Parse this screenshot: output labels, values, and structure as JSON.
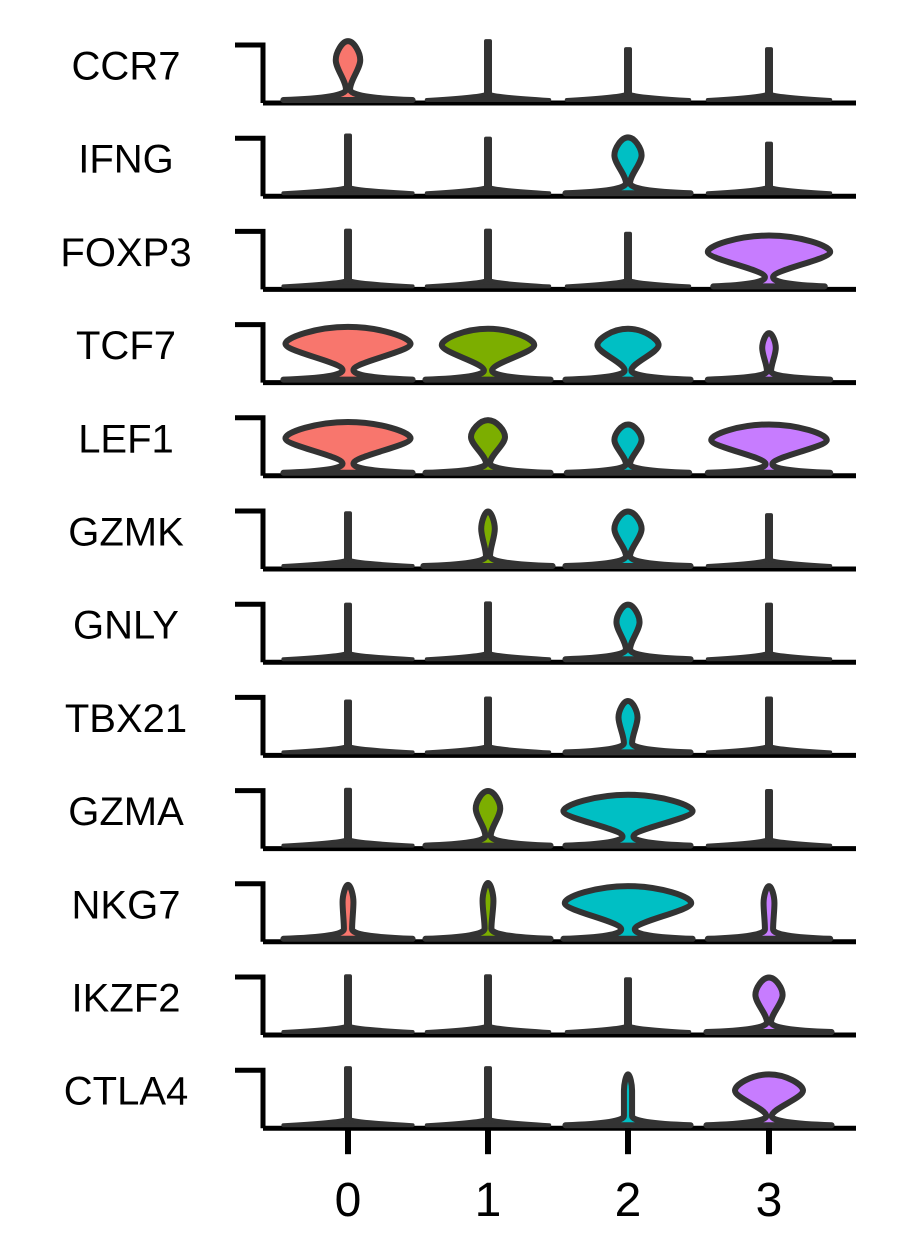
{
  "chart_data": {
    "type": "stacked-violin",
    "categories": [
      "0",
      "1",
      "2",
      "3"
    ],
    "xlabel": "",
    "ylabel": "",
    "colors": {
      "0": "#F8766D",
      "1": "#7CAE00",
      "2": "#00BFC4",
      "3": "#C77CFF"
    },
    "outline_color": "#333333",
    "genes": [
      {
        "name": "CCR7",
        "violins": [
          {
            "max": 0.95,
            "top_w": 0.18,
            "mid_w": 0.03,
            "base_w": 0.95
          },
          {
            "max": 0.95,
            "top_w": 0,
            "mid_w": 0,
            "base_w": 0.9
          },
          {
            "max": 0.82,
            "top_w": 0,
            "mid_w": 0,
            "base_w": 0.9
          },
          {
            "max": 0.82,
            "top_w": 0,
            "mid_w": 0,
            "base_w": 0.9
          }
        ]
      },
      {
        "name": "IFNG",
        "violins": [
          {
            "max": 0.93,
            "top_w": 0,
            "mid_w": 0,
            "base_w": 0.95
          },
          {
            "max": 0.88,
            "top_w": 0,
            "mid_w": 0,
            "base_w": 0.9
          },
          {
            "max": 0.9,
            "top_w": 0.2,
            "mid_w": 0.03,
            "base_w": 0.92
          },
          {
            "max": 0.8,
            "top_w": 0,
            "mid_w": 0,
            "base_w": 0.9
          }
        ]
      },
      {
        "name": "FOXP3",
        "violins": [
          {
            "max": 0.9,
            "top_w": 0,
            "mid_w": 0,
            "base_w": 0.95
          },
          {
            "max": 0.9,
            "top_w": 0,
            "mid_w": 0,
            "base_w": 0.9
          },
          {
            "max": 0.85,
            "top_w": 0,
            "mid_w": 0,
            "base_w": 0.9
          },
          {
            "max": 0.82,
            "top_w": 0.9,
            "mid_w": 0.06,
            "base_w": 0.82
          }
        ]
      },
      {
        "name": "TCF7",
        "violins": [
          {
            "max": 0.85,
            "top_w": 0.92,
            "mid_w": 0.08,
            "base_w": 0.95
          },
          {
            "max": 0.82,
            "top_w": 0.68,
            "mid_w": 0.06,
            "base_w": 0.92
          },
          {
            "max": 0.82,
            "top_w": 0.45,
            "mid_w": 0.05,
            "base_w": 0.92
          },
          {
            "max": 0.75,
            "top_w": 0.1,
            "mid_w": 0.03,
            "base_w": 0.9
          }
        ]
      },
      {
        "name": "LEF1",
        "violins": [
          {
            "max": 0.82,
            "top_w": 0.92,
            "mid_w": 0.08,
            "base_w": 0.95
          },
          {
            "max": 0.85,
            "top_w": 0.25,
            "mid_w": 0.03,
            "base_w": 0.92
          },
          {
            "max": 0.78,
            "top_w": 0.2,
            "mid_w": 0.03,
            "base_w": 0.9
          },
          {
            "max": 0.78,
            "top_w": 0.85,
            "mid_w": 0.05,
            "base_w": 0.9
          }
        ]
      },
      {
        "name": "GZMK",
        "violins": [
          {
            "max": 0.85,
            "top_w": 0,
            "mid_w": 0,
            "base_w": 0.95
          },
          {
            "max": 0.88,
            "top_w": 0.1,
            "mid_w": 0.03,
            "base_w": 0.95
          },
          {
            "max": 0.88,
            "top_w": 0.2,
            "mid_w": 0.03,
            "base_w": 0.92
          },
          {
            "max": 0.82,
            "top_w": 0,
            "mid_w": 0,
            "base_w": 0.9
          }
        ]
      },
      {
        "name": "GNLY",
        "violins": [
          {
            "max": 0.88,
            "top_w": 0,
            "mid_w": 0,
            "base_w": 0.95
          },
          {
            "max": 0.9,
            "top_w": 0,
            "mid_w": 0,
            "base_w": 0.9
          },
          {
            "max": 0.88,
            "top_w": 0.17,
            "mid_w": 0.03,
            "base_w": 0.92
          },
          {
            "max": 0.88,
            "top_w": 0,
            "mid_w": 0,
            "base_w": 0.9
          }
        ]
      },
      {
        "name": "TBX21",
        "violins": [
          {
            "max": 0.82,
            "top_w": 0,
            "mid_w": 0,
            "base_w": 0.95
          },
          {
            "max": 0.87,
            "top_w": 0,
            "mid_w": 0,
            "base_w": 0.9
          },
          {
            "max": 0.83,
            "top_w": 0.14,
            "mid_w": 0.06,
            "base_w": 0.92
          },
          {
            "max": 0.87,
            "top_w": 0,
            "mid_w": 0,
            "base_w": 0.9
          }
        ]
      },
      {
        "name": "GZMA",
        "violins": [
          {
            "max": 0.9,
            "top_w": 0,
            "mid_w": 0,
            "base_w": 0.95
          },
          {
            "max": 0.88,
            "top_w": 0.18,
            "mid_w": 0.04,
            "base_w": 0.92
          },
          {
            "max": 0.82,
            "top_w": 0.95,
            "mid_w": 0.08,
            "base_w": 0.92
          },
          {
            "max": 0.88,
            "top_w": 0,
            "mid_w": 0,
            "base_w": 0.9
          }
        ]
      },
      {
        "name": "NKG7",
        "violins": [
          {
            "max": 0.87,
            "top_w": 0.08,
            "mid_w": 0.06,
            "base_w": 0.95
          },
          {
            "max": 0.9,
            "top_w": 0.08,
            "mid_w": 0.05,
            "base_w": 0.92
          },
          {
            "max": 0.85,
            "top_w": 0.93,
            "mid_w": 0.1,
            "base_w": 0.95
          },
          {
            "max": 0.85,
            "top_w": 0.08,
            "mid_w": 0.06,
            "base_w": 0.9
          }
        ]
      },
      {
        "name": "IKZF2",
        "violins": [
          {
            "max": 0.9,
            "top_w": 0,
            "mid_w": 0,
            "base_w": 0.95
          },
          {
            "max": 0.9,
            "top_w": 0,
            "mid_w": 0,
            "base_w": 0.9
          },
          {
            "max": 0.85,
            "top_w": 0,
            "mid_w": 0,
            "base_w": 0.9
          },
          {
            "max": 0.88,
            "top_w": 0.2,
            "mid_w": 0.03,
            "base_w": 0.92
          }
        ]
      },
      {
        "name": "CTLA4",
        "violins": [
          {
            "max": 0.92,
            "top_w": 0,
            "mid_w": 0,
            "base_w": 0.95
          },
          {
            "max": 0.92,
            "top_w": 0,
            "mid_w": 0,
            "base_w": 0.9
          },
          {
            "max": 0.82,
            "top_w": 0.06,
            "mid_w": 0.06,
            "base_w": 0.92
          },
          {
            "max": 0.82,
            "top_w": 0.5,
            "mid_w": 0.04,
            "base_w": 0.92
          }
        ]
      }
    ]
  }
}
